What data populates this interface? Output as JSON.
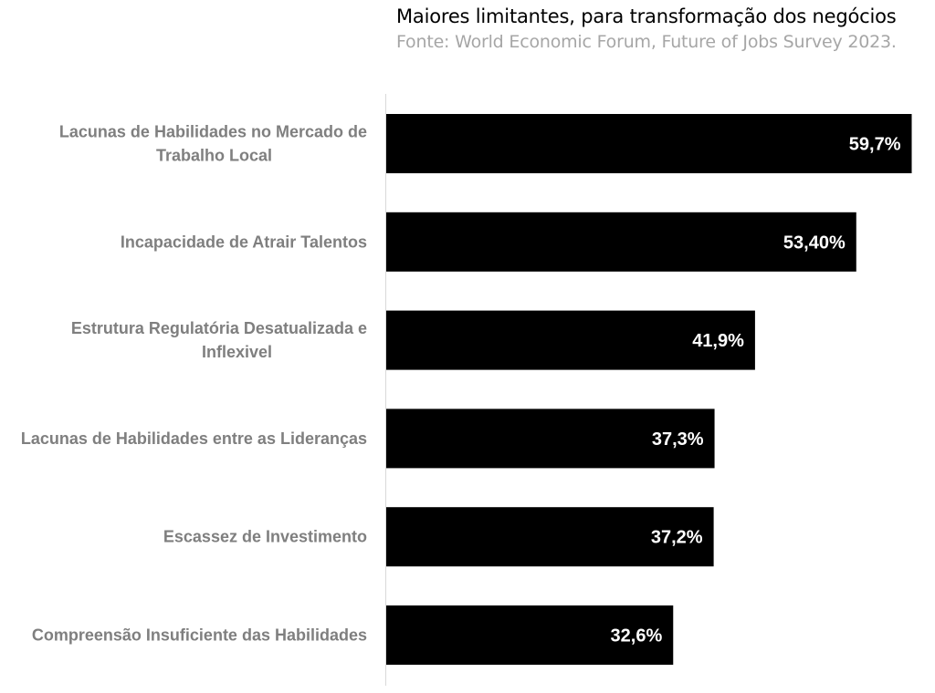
{
  "title": "Maiores limitantes, para transformação dos negócios",
  "subtitle": "Fonte: World Economic Forum, Future of Jobs Survey 2023.",
  "colors": {
    "bar": "#000000",
    "value_text": "#ffffff",
    "category_text": "#7f7f7f",
    "subtitle_text": "#a6a6a6",
    "axis_line": "#d9d9d9"
  },
  "chart_data": {
    "type": "bar",
    "orientation": "horizontal",
    "categories": [
      "Lacunas de Habilidades no Mercado de Trabalho Local",
      "Incapacidade de Atrair Talentos",
      "Estrutura Regulatória Desatualizada e Inflexivel",
      "Lacunas de Habilidades entre as Lideranças",
      "Escassez de Investimento",
      "Compreensão Insuficiente das Habilidades"
    ],
    "category_lines": [
      [
        "Lacunas de Habilidades no Mercado de",
        "Trabalho Local"
      ],
      [
        "Incapacidade de Atrair Talentos"
      ],
      [
        "Estrutura Regulatória Desatualizada e",
        "Inflexivel"
      ],
      [
        "Lacunas de Habilidades entre as Lideranças"
      ],
      [
        "Escassez de Investimento"
      ],
      [
        "Compreensão Insuficiente das Habilidades"
      ]
    ],
    "values": [
      59.7,
      53.4,
      41.9,
      37.3,
      37.2,
      32.6
    ],
    "value_labels": [
      "59,7%",
      "53,40%",
      "41,9%",
      "37,3%",
      "37,2%",
      "32,6%"
    ],
    "title": "Maiores limitantes, para transformação dos negócios",
    "xlabel": "",
    "ylabel": "",
    "xlim": [
      0,
      60
    ],
    "grid": false,
    "legend": "none"
  }
}
